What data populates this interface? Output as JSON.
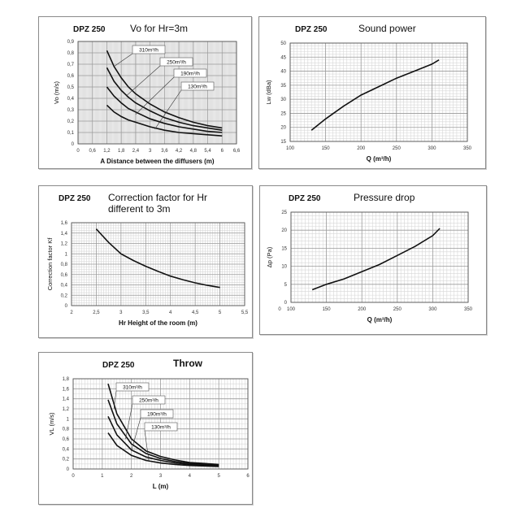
{
  "chart_data": [
    {
      "id": "vo",
      "type": "line",
      "model": "DPZ 250",
      "title": "Vo for Hr=3m",
      "xlabel": "A Distance between the diffusers (m)",
      "ylabel": "Vo (m/s)",
      "xlim": [
        0,
        6.6
      ],
      "ylim": [
        0,
        0.9
      ],
      "xticks": [
        "0",
        "0,6",
        "1,2",
        "1,8",
        "2,4",
        "3",
        "3,6",
        "4,2",
        "4,8",
        "5,4",
        "6",
        "6,6"
      ],
      "yticks": [
        "0",
        "0,1",
        "0,2",
        "0,3",
        "0,4",
        "0,5",
        "0,6",
        "0,7",
        "0,8",
        "0,9"
      ],
      "series": [
        {
          "name": "310m³/h",
          "x": [
            1.2,
            1.5,
            1.8,
            2.1,
            2.4,
            3.0,
            3.6,
            4.2,
            4.8,
            5.4,
            6.0
          ],
          "y": [
            0.82,
            0.68,
            0.58,
            0.5,
            0.44,
            0.35,
            0.28,
            0.23,
            0.19,
            0.16,
            0.14
          ]
        },
        {
          "name": "250m³/h",
          "x": [
            1.2,
            1.5,
            1.8,
            2.1,
            2.4,
            3.0,
            3.6,
            4.2,
            4.8,
            5.4,
            6.0
          ],
          "y": [
            0.67,
            0.55,
            0.47,
            0.41,
            0.36,
            0.29,
            0.23,
            0.19,
            0.16,
            0.14,
            0.12
          ]
        },
        {
          "name": "190m³/h",
          "x": [
            1.2,
            1.5,
            1.8,
            2.1,
            2.4,
            3.0,
            3.6,
            4.2,
            4.8,
            5.4,
            6.0
          ],
          "y": [
            0.5,
            0.42,
            0.36,
            0.31,
            0.28,
            0.22,
            0.18,
            0.15,
            0.13,
            0.11,
            0.1
          ]
        },
        {
          "name": "130m³/h",
          "x": [
            1.2,
            1.5,
            1.8,
            2.1,
            2.4,
            3.0,
            3.6,
            4.2,
            4.8,
            5.4,
            6.0
          ],
          "y": [
            0.34,
            0.28,
            0.24,
            0.21,
            0.19,
            0.15,
            0.12,
            0.1,
            0.09,
            0.08,
            0.07
          ]
        }
      ]
    },
    {
      "id": "sound",
      "type": "line",
      "model": "DPZ 250",
      "title": "Sound power",
      "xlabel": "Q (m³/h)",
      "ylabel": "Lw (dBa)",
      "xlim": [
        100,
        350
      ],
      "ylim": [
        15,
        50
      ],
      "xticks": [
        "100",
        "150",
        "200",
        "250",
        "300",
        "350"
      ],
      "yticks": [
        "15",
        "20",
        "25",
        "30",
        "35",
        "40",
        "45",
        "50"
      ],
      "series": [
        {
          "name": "",
          "x": [
            130,
            150,
            175,
            200,
            225,
            250,
            275,
            300,
            310
          ],
          "y": [
            19,
            23,
            27.5,
            31.5,
            34.5,
            37.5,
            40,
            42.5,
            44
          ]
        }
      ]
    },
    {
      "id": "correction",
      "type": "line",
      "model": "DPZ 250",
      "title": "Correction factor for Hr different to 3m",
      "xlabel": "Hr Height of the room (m)",
      "ylabel": "Correction factor Kf",
      "xlim": [
        2,
        5.5
      ],
      "ylim": [
        0,
        1.6
      ],
      "xticks": [
        "2",
        "2,5",
        "3",
        "3,5",
        "4",
        "4,5",
        "5",
        "5,5"
      ],
      "yticks": [
        "0",
        "0,2",
        "0,4",
        "0,6",
        "0,8",
        "1",
        "1,2",
        "1,4",
        "1,6"
      ],
      "series": [
        {
          "name": "",
          "x": [
            2.5,
            2.75,
            3.0,
            3.25,
            3.5,
            3.75,
            4.0,
            4.25,
            4.5,
            4.75,
            5.0
          ],
          "y": [
            1.48,
            1.22,
            1.0,
            0.87,
            0.76,
            0.66,
            0.57,
            0.5,
            0.44,
            0.39,
            0.35
          ]
        }
      ]
    },
    {
      "id": "pressure",
      "type": "line",
      "model": "DPZ 250",
      "title": "Pressure drop",
      "xlabel": "Q (m³/h)",
      "ylabel": "Δp (Pa)",
      "xlim": [
        100,
        350
      ],
      "ylim": [
        0,
        25
      ],
      "xticks": [
        "0",
        "100",
        "150",
        "200",
        "250",
        "300",
        "350"
      ],
      "yticks": [
        "0",
        "5",
        "10",
        "15",
        "20",
        "25"
      ],
      "series": [
        {
          "name": "",
          "x": [
            130,
            150,
            175,
            200,
            225,
            250,
            275,
            300,
            310
          ],
          "y": [
            3.5,
            5,
            6.5,
            8.5,
            10.5,
            13,
            15.5,
            18.5,
            20.5
          ]
        }
      ]
    },
    {
      "id": "throw",
      "type": "line",
      "model": "DPZ 250",
      "title": "Throw",
      "xlabel": "L (m)",
      "ylabel": "VL (m/s)",
      "xlim": [
        0,
        6
      ],
      "ylim": [
        0,
        1.8
      ],
      "xticks": [
        "0",
        "1",
        "2",
        "3",
        "4",
        "5",
        "6"
      ],
      "yticks": [
        "0",
        "0,2",
        "0,4",
        "0,6",
        "0,8",
        "1",
        "1,2",
        "1,4",
        "1,6",
        "1,8"
      ],
      "series": [
        {
          "name": "310m³/h",
          "x": [
            1.2,
            1.5,
            2.0,
            2.5,
            3.0,
            3.5,
            4.0,
            4.5,
            5.0
          ],
          "y": [
            1.7,
            1.1,
            0.6,
            0.36,
            0.25,
            0.18,
            0.13,
            0.11,
            0.09
          ]
        },
        {
          "name": "250m³/h",
          "x": [
            1.2,
            1.5,
            2.0,
            2.5,
            3.0,
            3.5,
            4.0,
            4.5,
            5.0
          ],
          "y": [
            1.38,
            0.9,
            0.5,
            0.31,
            0.21,
            0.15,
            0.11,
            0.09,
            0.08
          ]
        },
        {
          "name": "190m³/h",
          "x": [
            1.2,
            1.5,
            2.0,
            2.5,
            3.0,
            3.5,
            4.0,
            4.5,
            5.0
          ],
          "y": [
            1.05,
            0.68,
            0.38,
            0.24,
            0.17,
            0.12,
            0.09,
            0.08,
            0.07
          ]
        },
        {
          "name": "130m³/h",
          "x": [
            1.2,
            1.5,
            2.0,
            2.5,
            3.0,
            3.5,
            4.0,
            4.5,
            5.0
          ],
          "y": [
            0.72,
            0.47,
            0.27,
            0.17,
            0.12,
            0.09,
            0.07,
            0.06,
            0.05
          ]
        }
      ]
    }
  ]
}
